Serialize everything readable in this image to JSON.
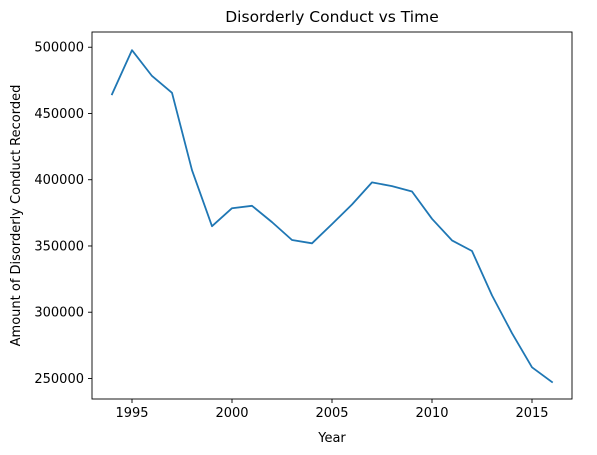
{
  "chart_data": {
    "type": "line",
    "title": "Disorderly Conduct vs Time",
    "xlabel": "Year",
    "ylabel": "Amount of Disorderly Conduct Recorded",
    "xlim": [
      1993,
      2017
    ],
    "ylim": [
      234500,
      511500
    ],
    "x_ticks": [
      1995,
      2000,
      2005,
      2010,
      2015
    ],
    "y_ticks": [
      250000,
      300000,
      350000,
      400000,
      450000,
      500000
    ],
    "grid": false,
    "legend": "none",
    "line_color": "#1f77b4",
    "series": [
      {
        "x": [
          1994,
          1995,
          1996,
          1997,
          1998,
          1999,
          2000,
          2001,
          2002,
          2003,
          2004,
          2005,
          2006,
          2007,
          2008,
          2009,
          2010,
          2011,
          2012,
          2013,
          2014,
          2015,
          2016
        ],
        "values": [
          464500,
          497800,
          478300,
          465600,
          407200,
          364900,
          378500,
          380300,
          368000,
          354500,
          352000,
          366500,
          381300,
          398000,
          395200,
          391100,
          370500,
          354200,
          346200,
          312700,
          284200,
          258400,
          247300
        ]
      }
    ]
  }
}
